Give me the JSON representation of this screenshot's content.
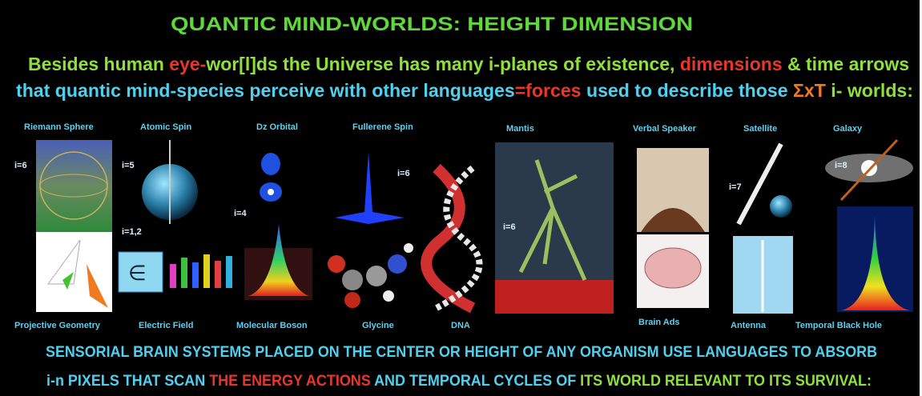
{
  "title": [
    {
      "text": "QUANTIC MIND-WORLDS:  HEIGHT DIMENSION",
      "color": "#5fd83a"
    }
  ],
  "intro": [
    [
      {
        "text": "Besides human ",
        "color": "#8ee03a"
      },
      {
        "text": "eye-",
        "color": "#e8362a"
      },
      {
        "text": "wor[l]ds",
        "color": "#8ee03a"
      },
      {
        "text": " the Universe has many i-planes of existence, ",
        "color": "#8ee03a"
      },
      {
        "text": "dimensions",
        "color": "#e8362a"
      },
      {
        "text": " & time arrows",
        "color": "#8ee03a"
      }
    ],
    [
      {
        "text": "that quantic mind-species perceive with other languages",
        "color": "#4fd0ee"
      },
      {
        "text": "=forces",
        "color": "#e8362a"
      },
      {
        "text": " used to describe those ",
        "color": "#4fd0ee"
      },
      {
        "text": "ΣxT",
        "color": "#f07a20"
      },
      {
        "text": " i- worlds:",
        "color": "#8ee03a"
      }
    ]
  ],
  "top_labels": [
    "Riemann Sphere",
    "Atomic Spin",
    "Dz Orbital",
    "Fullerene Spin",
    "Mantis",
    "Verbal Speaker",
    "Satellite",
    "Galaxy"
  ],
  "bottom_labels": [
    "Projective Geometry",
    "Electric Field",
    "Molecular Boson",
    "Glycine",
    "DNA",
    "Brain Ads",
    "Antenna",
    "Temporal Black Hole"
  ],
  "levels": [
    "i=6",
    "i=5",
    "i=4",
    "i=1,2",
    "i=6",
    "i=6",
    "i=7",
    "i=8"
  ],
  "footer": [
    [
      {
        "text": "SENSORIAL BRAIN SYSTEMS PLACED ON THE CENTER OR HEIGHT OF ANY  ORGANISM USE LANGUAGES TO ABSORB",
        "color": "#4fd0ee"
      }
    ],
    [
      {
        "text": "i-n PIXELS THAT SCAN ",
        "color": "#4fd0ee"
      },
      {
        "text": "THE ENERGY ACTIONS",
        "color": "#e8362a"
      },
      {
        "text": " AND TEMPORAL CYCLES  OF ",
        "color": "#4fd0ee"
      },
      {
        "text": "ITS WORLD RELEVANT TO ITS SURVIVAL:",
        "color": "#8ee03a"
      }
    ]
  ]
}
